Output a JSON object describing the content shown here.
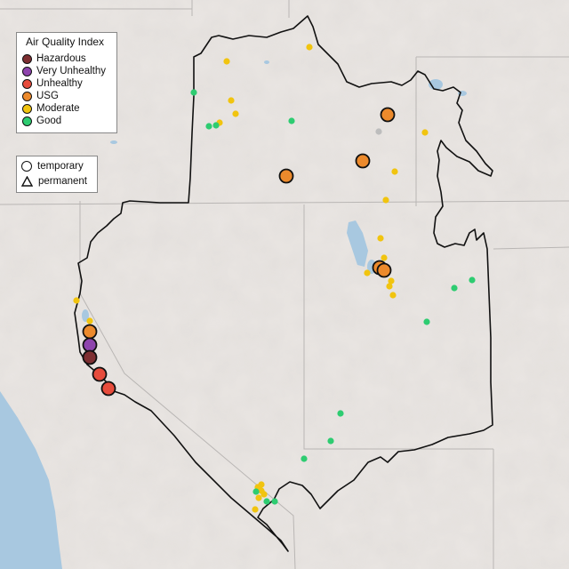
{
  "legend_aqi": {
    "title": "Air Quality Index",
    "items": [
      {
        "label": "Hazardous",
        "color": "#7e2f32"
      },
      {
        "label": "Very Unhealthy",
        "color": "#8e44ad"
      },
      {
        "label": "Unhealthy",
        "color": "#e74c3c"
      },
      {
        "label": "USG",
        "color": "#ec8a2c"
      },
      {
        "label": "Moderate",
        "color": "#f1c40f"
      },
      {
        "label": "Good",
        "color": "#2ecc71"
      }
    ]
  },
  "legend_type": {
    "items": [
      {
        "label": "temporary",
        "shape": "circle"
      },
      {
        "label": "permanent",
        "shape": "triangle"
      }
    ]
  },
  "colors": {
    "land": "#e9e5e2",
    "water": "#a8c8e0",
    "region_border": "#111111",
    "state_border": "#b9b6b4",
    "no_data": "#bdbdbd"
  }
}
